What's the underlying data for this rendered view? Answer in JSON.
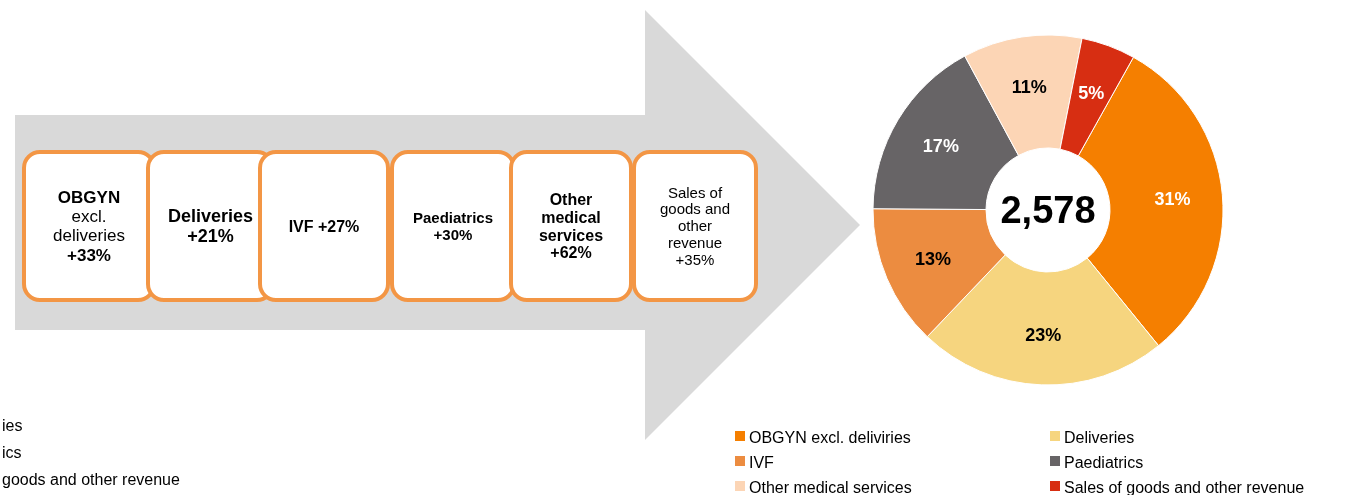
{
  "chart_data": {
    "type": "donut",
    "categories": [
      "OBGYN excl. deliviries",
      "Deliveries",
      "IVF",
      "Paediatrics",
      "Other medical services",
      "Sales of goods and other revenue"
    ],
    "values": [
      31,
      23,
      13,
      17,
      11,
      5
    ],
    "colors": [
      "#f57f00",
      "#f6d57f",
      "#ec8c40",
      "#676466",
      "#fcd5b5",
      "#d72e12"
    ],
    "value_labels": [
      "31%",
      "23%",
      "13%",
      "17%",
      "11%",
      "5%"
    ],
    "legend": "bottom",
    "annotations": [
      "2,578",
      "OBGYN\nexcl.\ndeliveries\n+33%",
      "Deliveries\n+21%",
      "IVF +27%",
      "Paediatrics\n+30%",
      "Other\nmedical\nservices\n+62%",
      "Sales of\ngoods and\nother\nrevenue\n+35%",
      "ies",
      "ics",
      "goods and other revenue"
    ]
  }
}
